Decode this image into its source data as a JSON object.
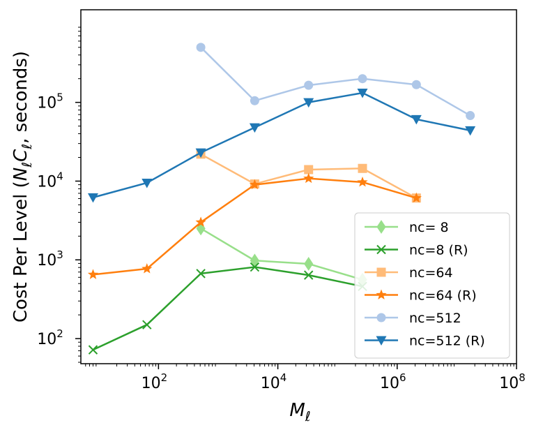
{
  "chart_data": {
    "type": "line",
    "title": "",
    "xlabel_main": "M",
    "xlabel_sub": "ℓ",
    "ylabel_parts": [
      "Cost Per Level (",
      "N",
      "ℓ",
      "C",
      "ℓ",
      ", seconds)"
    ],
    "xscale": "log",
    "yscale": "log",
    "xlim": [
      5,
      100000000
    ],
    "ylim": [
      48,
      1500000
    ],
    "xticks": [
      {
        "value": 100,
        "base": "10",
        "exp": "2"
      },
      {
        "value": 10000,
        "base": "10",
        "exp": "4"
      },
      {
        "value": 1000000,
        "base": "10",
        "exp": "6"
      },
      {
        "value": 100000000,
        "base": "10",
        "exp": "8"
      }
    ],
    "yticks": [
      {
        "value": 100,
        "base": "10",
        "exp": "2"
      },
      {
        "value": 1000,
        "base": "10",
        "exp": "3"
      },
      {
        "value": 10000,
        "base": "10",
        "exp": "4"
      },
      {
        "value": 100000,
        "base": "10",
        "exp": "5"
      }
    ],
    "legend_position": "lower-right",
    "series": [
      {
        "name": "nc= 8",
        "color": "#98df8a",
        "marker": "diamond",
        "x": [
          512,
          4096,
          32768,
          262144
        ],
        "y": [
          2500,
          980,
          890,
          560
        ]
      },
      {
        "name": "nc=8 (R)",
        "color": "#2ca02c",
        "marker": "x",
        "x": [
          8,
          64,
          512,
          4096,
          32768,
          262144
        ],
        "y": [
          72,
          150,
          670,
          810,
          640,
          460
        ]
      },
      {
        "name": "nc=64",
        "color": "#ffbb78",
        "marker": "square",
        "x": [
          512,
          4096,
          32768,
          262144,
          2097152
        ],
        "y": [
          22000,
          9200,
          14000,
          14500,
          6100
        ]
      },
      {
        "name": "nc=64 (R)",
        "color": "#ff7f0e",
        "marker": "star",
        "x": [
          8,
          64,
          512,
          4096,
          32768,
          262144,
          2097152
        ],
        "y": [
          650,
          770,
          3000,
          9000,
          10800,
          9700,
          6100
        ]
      },
      {
        "name": "nc=512",
        "color": "#aec7e8",
        "marker": "circle",
        "x": [
          512,
          4096,
          32768,
          262144,
          2097152,
          16777216
        ],
        "y": [
          500000,
          105000,
          165000,
          200000,
          168000,
          68000
        ]
      },
      {
        "name": "nc=512 (R)",
        "color": "#1f77b4",
        "marker": "triangle-down",
        "x": [
          8,
          64,
          512,
          4096,
          32768,
          262144,
          2097152,
          16777216
        ],
        "y": [
          6200,
          9500,
          23000,
          48000,
          100000,
          132000,
          61000,
          44000
        ]
      }
    ]
  }
}
